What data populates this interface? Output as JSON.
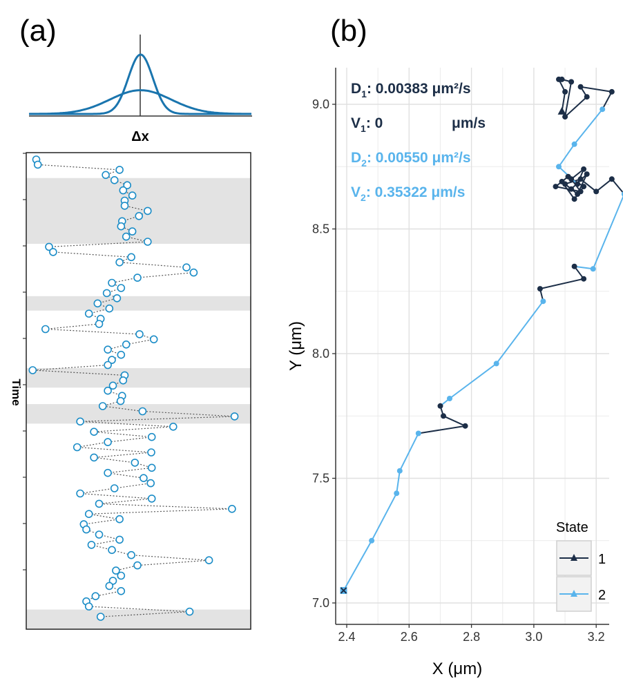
{
  "panel_labels": {
    "a": "(a)",
    "b": "(b)"
  },
  "colors": {
    "gaussian": "#1a75ae",
    "circle": "#1a8cc7",
    "dotted": "#555555",
    "band": "#e3e3e3",
    "state1": "#1c2e47",
    "state2": "#59b4ec",
    "grid": "#ebebeb"
  },
  "chart_data": [
    {
      "id": "a-top",
      "type": "line",
      "xlabel": "Δx",
      "series": [
        {
          "sigma": 0.22,
          "peak": 1.0
        },
        {
          "sigma": 0.55,
          "peak": 0.4
        }
      ],
      "xlim": [
        -2,
        2
      ]
    },
    {
      "id": "a-main",
      "type": "scatter",
      "ylabel": "Time",
      "grid": false,
      "y_ticks": 10,
      "bands": [
        [
          5,
          17
        ],
        [
          28,
          30
        ],
        [
          42,
          45
        ],
        [
          49,
          52
        ],
        [
          89,
          92
        ]
      ],
      "x": [
        -1.98,
        -1.95,
        -0.35,
        -0.62,
        -0.45,
        -0.2,
        -0.28,
        -0.1,
        -0.25,
        -0.25,
        0.2,
        0.03,
        -0.3,
        -0.32,
        -0.1,
        -0.22,
        0.2,
        -1.73,
        -1.65,
        -0.12,
        -0.35,
        0.96,
        1.1,
        0.0,
        -0.5,
        -0.32,
        -0.6,
        -0.4,
        -0.78,
        -0.55,
        -0.95,
        -0.72,
        -0.75,
        -1.8,
        0.04,
        0.32,
        -0.22,
        -0.58,
        -0.32,
        -0.5,
        -0.58,
        -2.05,
        -0.25,
        -0.28,
        -0.48,
        -0.58,
        -0.3,
        -0.33,
        -0.68,
        0.1,
        1.9,
        -1.12,
        0.7,
        -0.85,
        0.28,
        -0.58,
        -1.18,
        0.27,
        -0.85,
        -0.05,
        0.28,
        -0.58,
        0.12,
        0.26,
        -0.45,
        -1.12,
        0.28,
        -0.75,
        1.85,
        -0.95,
        -0.35,
        -1.05,
        -1.0,
        -0.75,
        -0.35,
        -0.9,
        -0.5,
        -0.12,
        1.4,
        0.0,
        -0.42,
        -0.32,
        -0.48,
        -0.55,
        -0.32,
        -0.82,
        -1.0,
        -0.95,
        1.02,
        -0.72
      ],
      "y": [
        1,
        2,
        3,
        4,
        5,
        6,
        7,
        8,
        9,
        10,
        11,
        12,
        13,
        14,
        15,
        16,
        17,
        18,
        19,
        20,
        21,
        22,
        23,
        24,
        25,
        26,
        27,
        28,
        29,
        30,
        31,
        32,
        33,
        34,
        35,
        36,
        37,
        38,
        39,
        40,
        41,
        42,
        43,
        44,
        45,
        46,
        47,
        48,
        49,
        50,
        51,
        52,
        53,
        54,
        55,
        56,
        57,
        58,
        59,
        60,
        61,
        62,
        63,
        64,
        65,
        66,
        67,
        68,
        69,
        70,
        71,
        72,
        73,
        74,
        75,
        76,
        77,
        78,
        79,
        80,
        81,
        82,
        83,
        84,
        85,
        86,
        87,
        88,
        89,
        90
      ]
    },
    {
      "id": "b",
      "type": "line",
      "xlabel": "X (μm)",
      "ylabel": "Y (μm)",
      "xlim": [
        2.36,
        3.3
      ],
      "ylim": [
        6.95,
        9.3
      ],
      "x_ticks": [
        "2.4",
        "2.6",
        "2.8",
        "3.0",
        "3.2"
      ],
      "y_ticks": [
        "7.0",
        "7.5",
        "8.0",
        "8.5",
        "9.0"
      ],
      "grid": true,
      "legend_title": "State",
      "legend_position": "bottom-right",
      "legend": [
        "1",
        "2"
      ],
      "annotations": [
        {
          "label": "D",
          "sub": "1",
          "value": ": 0.00383 μm²/s",
          "state": 1
        },
        {
          "label": "V",
          "sub": "1",
          "value": ": 0",
          "unit": "μm/s",
          "state": 1
        },
        {
          "label": "D",
          "sub": "2",
          "value": ": 0.00550 μm²/s",
          "state": 2
        },
        {
          "label": "V",
          "sub": "2",
          "value": ": 0.35322 μm/s",
          "state": 2
        }
      ],
      "points": [
        {
          "x": 2.39,
          "y": 7.05,
          "s": 2
        },
        {
          "x": 2.48,
          "y": 7.25,
          "s": 2
        },
        {
          "x": 2.56,
          "y": 7.44,
          "s": 2
        },
        {
          "x": 2.57,
          "y": 7.53,
          "s": 2
        },
        {
          "x": 2.63,
          "y": 7.68,
          "s": 2
        },
        {
          "x": 2.78,
          "y": 7.71,
          "s": 1
        },
        {
          "x": 2.71,
          "y": 7.75,
          "s": 1
        },
        {
          "x": 2.7,
          "y": 7.79,
          "s": 1
        },
        {
          "x": 2.73,
          "y": 7.82,
          "s": 2
        },
        {
          "x": 2.88,
          "y": 7.96,
          "s": 2
        },
        {
          "x": 3.03,
          "y": 8.21,
          "s": 2
        },
        {
          "x": 3.02,
          "y": 8.26,
          "s": 1
        },
        {
          "x": 3.16,
          "y": 8.3,
          "s": 1
        },
        {
          "x": 3.13,
          "y": 8.35,
          "s": 1
        },
        {
          "x": 3.19,
          "y": 8.34,
          "s": 2
        },
        {
          "x": 3.29,
          "y": 8.64,
          "s": 2
        },
        {
          "x": 3.25,
          "y": 8.7,
          "s": 1
        },
        {
          "x": 3.2,
          "y": 8.65,
          "s": 1
        },
        {
          "x": 3.15,
          "y": 8.7,
          "s": 1
        },
        {
          "x": 3.1,
          "y": 8.68,
          "s": 1
        },
        {
          "x": 3.14,
          "y": 8.64,
          "s": 1
        },
        {
          "x": 3.17,
          "y": 8.72,
          "s": 1
        },
        {
          "x": 3.12,
          "y": 8.66,
          "s": 1
        },
        {
          "x": 3.09,
          "y": 8.69,
          "s": 1
        },
        {
          "x": 3.13,
          "y": 8.62,
          "s": 1
        },
        {
          "x": 3.16,
          "y": 8.67,
          "s": 1
        },
        {
          "x": 3.11,
          "y": 8.71,
          "s": 1
        },
        {
          "x": 3.07,
          "y": 8.67,
          "s": 1
        },
        {
          "x": 3.15,
          "y": 8.65,
          "s": 1
        },
        {
          "x": 3.12,
          "y": 8.7,
          "s": 1
        },
        {
          "x": 3.16,
          "y": 8.74,
          "s": 1
        },
        {
          "x": 3.14,
          "y": 8.68,
          "s": 1
        },
        {
          "x": 3.08,
          "y": 8.75,
          "s": 2
        },
        {
          "x": 3.13,
          "y": 8.84,
          "s": 2
        },
        {
          "x": 3.22,
          "y": 8.98,
          "s": 2
        },
        {
          "x": 3.25,
          "y": 9.05,
          "s": 1
        },
        {
          "x": 3.15,
          "y": 9.07,
          "s": 1
        },
        {
          "x": 3.17,
          "y": 9.03,
          "s": 1
        },
        {
          "x": 3.1,
          "y": 8.95,
          "s": 1
        },
        {
          "x": 3.12,
          "y": 9.09,
          "s": 1
        },
        {
          "x": 3.09,
          "y": 9.1,
          "s": 1
        },
        {
          "x": 3.08,
          "y": 9.1,
          "s": 1
        },
        {
          "x": 3.1,
          "y": 9.05,
          "s": 1
        },
        {
          "x": 3.09,
          "y": 8.97,
          "s": 1
        }
      ]
    }
  ]
}
